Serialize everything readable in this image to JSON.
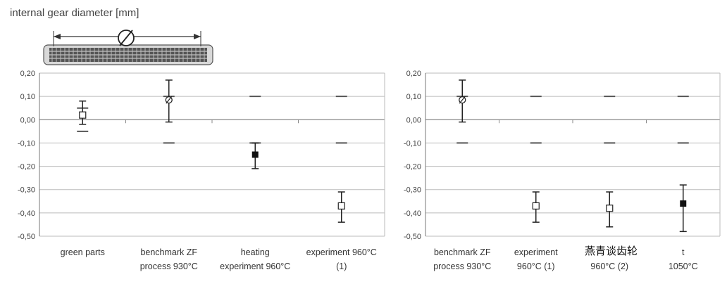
{
  "title": "internal gear diameter [mm]",
  "gear_icon": "diameter-symbol-gear-illustration",
  "watermark_text": "燕青谈齿轮",
  "chart_data": [
    {
      "type": "errorbar",
      "title": "",
      "xlabel": "",
      "ylabel": "",
      "ylim": [
        -0.5,
        0.2
      ],
      "yticks": [
        "0,20",
        "0,10",
        "0,00",
        "-0,10",
        "-0,20",
        "-0,30",
        "-0,40",
        "-0,50"
      ],
      "ytick_values": [
        0.2,
        0.1,
        0.0,
        -0.1,
        -0.2,
        -0.3,
        -0.4,
        -0.5
      ],
      "grid": true,
      "categories": [
        [
          "green parts"
        ],
        [
          "benchmark ZF",
          "process 930°C"
        ],
        [
          "heating",
          "experiment 960°C"
        ],
        [
          "experiment 960°C",
          "(1)"
        ]
      ],
      "points": [
        {
          "mean": 0.02,
          "min": -0.02,
          "max": 0.08,
          "marker": "open-square"
        },
        {
          "mean": 0.085,
          "min": -0.01,
          "max": 0.17,
          "marker": "open-circle-slash"
        },
        {
          "mean": -0.15,
          "min": -0.21,
          "max": -0.1,
          "marker": "filled-square"
        },
        {
          "mean": -0.37,
          "min": -0.44,
          "max": -0.31,
          "marker": "open-square"
        }
      ],
      "tolerance": [
        {
          "upper": 0.05,
          "lower": -0.05
        },
        {
          "upper": 0.1,
          "lower": -0.1
        },
        {
          "upper": 0.1,
          "lower": -0.1
        },
        {
          "upper": 0.1,
          "lower": -0.1
        }
      ]
    },
    {
      "type": "errorbar",
      "title": "",
      "xlabel": "",
      "ylabel": "",
      "ylim": [
        -0.5,
        0.2
      ],
      "yticks": [
        "0,20",
        "0,10",
        "0,00",
        "-0,10",
        "-0,20",
        "-0,30",
        "-0,40",
        "-0,50"
      ],
      "ytick_values": [
        0.2,
        0.1,
        0.0,
        -0.1,
        -0.2,
        -0.3,
        -0.4,
        -0.5
      ],
      "grid": true,
      "categories": [
        [
          "benchmark ZF",
          "process 930°C"
        ],
        [
          "experiment",
          "960°C (1)"
        ],
        [
          "",
          "960°C (2)"
        ],
        [
          "t",
          "1050°C"
        ]
      ],
      "points": [
        {
          "mean": 0.085,
          "min": -0.01,
          "max": 0.17,
          "marker": "open-circle-slash"
        },
        {
          "mean": -0.37,
          "min": -0.44,
          "max": -0.31,
          "marker": "open-square"
        },
        {
          "mean": -0.38,
          "min": -0.46,
          "max": -0.31,
          "marker": "open-square"
        },
        {
          "mean": -0.36,
          "min": -0.48,
          "max": -0.28,
          "marker": "filled-square"
        }
      ],
      "tolerance": [
        {
          "upper": 0.1,
          "lower": -0.1
        },
        {
          "upper": 0.1,
          "lower": -0.1
        },
        {
          "upper": 0.1,
          "lower": -0.1
        },
        {
          "upper": 0.1,
          "lower": -0.1
        }
      ]
    }
  ]
}
